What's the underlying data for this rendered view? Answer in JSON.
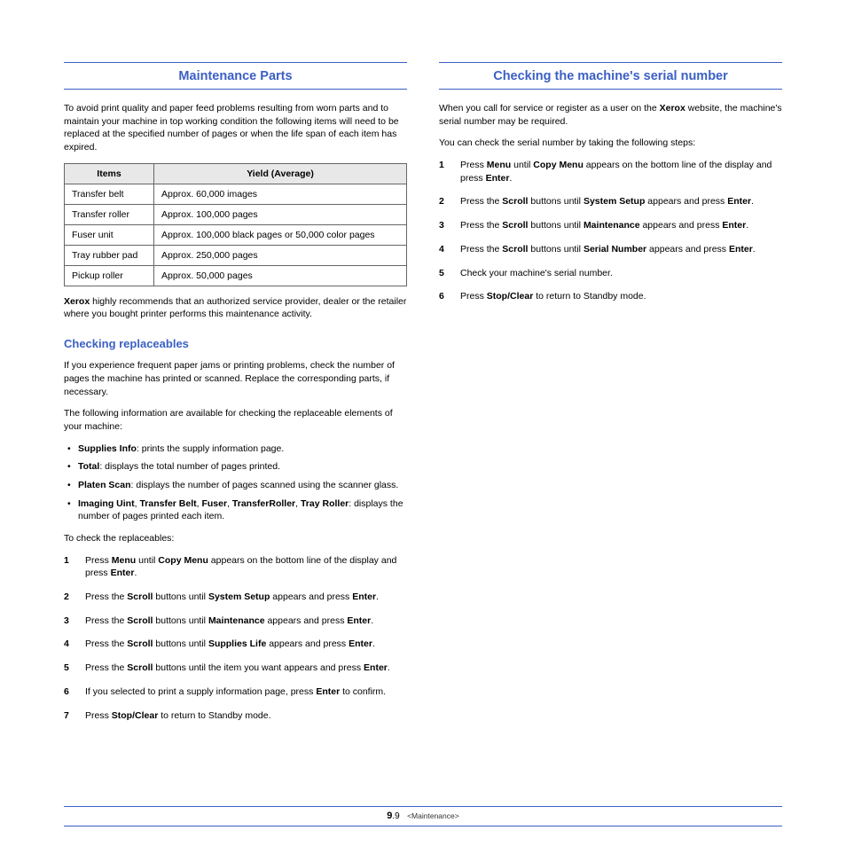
{
  "colors": {
    "accent": "#3b5fc4",
    "header_bg": "#e8e8e8",
    "text": "#000000",
    "border": "#666666",
    "background": "#ffffff"
  },
  "left": {
    "title": "Maintenance Parts",
    "intro": "To avoid print quality and paper feed problems resulting from worn parts and to maintain your machine in top working condition the following items will need to be replaced at the specified number of pages or when the life span of each item has expired.",
    "table": {
      "headers": [
        "Items",
        "Yield (Average)"
      ],
      "rows": [
        [
          "Transfer belt",
          "Approx. 60,000 images"
        ],
        [
          "Transfer roller",
          "Approx. 100,000 pages"
        ],
        [
          "Fuser unit",
          "Approx. 100,000 black pages or 50,000 color pages"
        ],
        [
          "Tray rubber pad",
          "Approx. 250,000 pages"
        ],
        [
          "Pickup roller",
          "Approx. 50,000 pages"
        ]
      ]
    },
    "note_html": "<b>Xerox</b> highly recommends that an authorized service provider, dealer or the retailer where you bought printer performs this maintenance activity.",
    "sub_title": "Checking replaceables",
    "sub_p1": "If you experience frequent paper jams or printing problems, check the number of pages the machine has printed or scanned. Replace the corresponding parts, if necessary.",
    "sub_p2": "The following information are available for checking the replaceable elements of your machine:",
    "bullets": [
      "<b>Supplies Info</b>: prints the supply information page.",
      "<b>Total</b>: displays the total number of pages printed.",
      "<b>Platen Scan</b>: displays the number of pages scanned using the scanner glass.",
      "<b>Imaging Uint</b>, <b>Transfer Belt</b>, <b>Fuser</b>, <b>TransferRoller</b>, <b>Tray Roller</b>: displays the number of pages printed each item."
    ],
    "sub_p3": "To check the replaceables:",
    "steps": [
      "Press <b>Menu</b> until <b>Copy Menu</b> appears on the bottom line of the display and press <b>Enter</b>.",
      "Press the <b>Scroll</b> buttons until <b>System Setup</b> appears and press <b>Enter</b>.",
      "Press the <b>Scroll</b> buttons until <b>Maintenance</b> appears and press <b>Enter</b>.",
      "Press the <b>Scroll</b> buttons until <b>Supplies Life</b> appears and press <b>Enter</b>.",
      "Press the <b>Scroll</b> buttons until the item you want appears and press <b>Enter</b>.",
      "If you selected to print a supply information page, press <b>Enter</b> to confirm.",
      "Press <b>Stop/Clear</b> to return to Standby mode."
    ]
  },
  "right": {
    "title": "Checking the machine's serial number",
    "p1_html": "When you call for service or register as a user on the <b>Xerox</b> website, the machine's serial number may be required.",
    "p2": "You can check the serial number by taking the following steps:",
    "steps": [
      "Press <b>Menu</b> until <b>Copy Menu</b> appears on the bottom line of the display and press <b>Enter</b>.",
      "Press the <b>Scroll</b> buttons until <b>System Setup</b> appears and press <b>Enter</b>.",
      "Press the <b>Scroll</b> buttons until <b>Maintenance</b> appears and press <b>Enter</b>.",
      "Press the <b>Scroll</b> buttons until <b>Serial Number</b> appears and press <b>Enter</b>.",
      "Check your machine's serial number.",
      "Press <b>Stop/Clear</b> to return to Standby mode."
    ]
  },
  "footer": {
    "chapter": "9",
    "page": ".9",
    "label": "<Maintenance>"
  }
}
